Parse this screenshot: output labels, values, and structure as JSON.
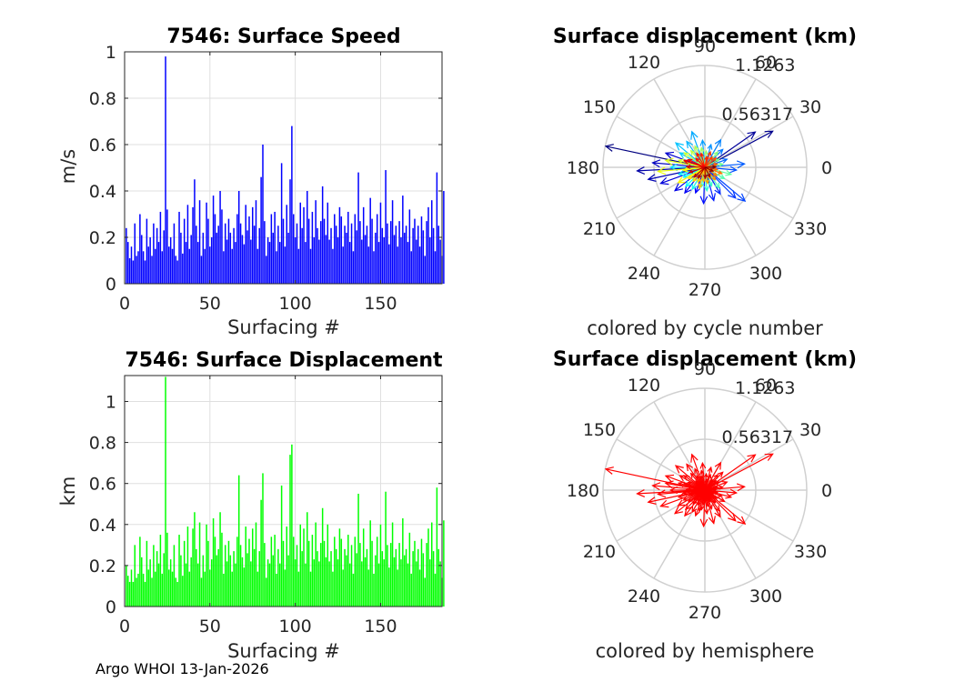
{
  "footer": "Argo WHOI 13-Jan-2026",
  "chart_data": [
    {
      "id": "speed",
      "type": "bar",
      "title": "7546: Surface Speed",
      "xlabel": "Surfacing #",
      "ylabel": "m/s",
      "xlim": [
        0,
        186
      ],
      "ylim": [
        0,
        1
      ],
      "xticks": [
        "0",
        "50",
        "100",
        "150"
      ],
      "yticks": [
        "0",
        "0.2",
        "0.4",
        "0.6",
        "0.8",
        "1"
      ],
      "bar_color": "#0000ff",
      "grid": true,
      "values": [
        0.24,
        0.18,
        0.11,
        0.16,
        0.1,
        0.26,
        0.12,
        0.14,
        0.3,
        0.21,
        0.14,
        0.1,
        0.28,
        0.16,
        0.2,
        0.12,
        0.26,
        0.15,
        0.24,
        0.18,
        0.31,
        0.14,
        0.23,
        0.98,
        0.32,
        0.16,
        0.2,
        0.15,
        0.26,
        0.12,
        0.1,
        0.31,
        0.22,
        0.13,
        0.28,
        0.18,
        0.34,
        0.15,
        0.21,
        0.33,
        0.45,
        0.25,
        0.18,
        0.36,
        0.12,
        0.22,
        0.15,
        0.35,
        0.28,
        0.16,
        0.2,
        0.38,
        0.3,
        0.22,
        0.25,
        0.4,
        0.32,
        0.14,
        0.26,
        0.19,
        0.28,
        0.22,
        0.15,
        0.24,
        0.18,
        0.3,
        0.4,
        0.26,
        0.21,
        0.17,
        0.34,
        0.23,
        0.29,
        0.19,
        0.33,
        0.25,
        0.36,
        0.15,
        0.24,
        0.46,
        0.6,
        0.27,
        0.12,
        0.2,
        0.18,
        0.3,
        0.22,
        0.31,
        0.14,
        0.25,
        0.18,
        0.52,
        0.28,
        0.16,
        0.34,
        0.22,
        0.45,
        0.68,
        0.3,
        0.2,
        0.26,
        0.15,
        0.35,
        0.24,
        0.33,
        0.18,
        0.4,
        0.28,
        0.15,
        0.31,
        0.2,
        0.36,
        0.24,
        0.19,
        0.27,
        0.42,
        0.28,
        0.21,
        0.35,
        0.19,
        0.24,
        0.15,
        0.3,
        0.25,
        0.2,
        0.33,
        0.29,
        0.16,
        0.25,
        0.22,
        0.31,
        0.18,
        0.26,
        0.14,
        0.3,
        0.23,
        0.48,
        0.27,
        0.19,
        0.33,
        0.21,
        0.25,
        0.16,
        0.37,
        0.28,
        0.14,
        0.22,
        0.3,
        0.18,
        0.35,
        0.24,
        0.2,
        0.49,
        0.26,
        0.17,
        0.27,
        0.36,
        0.21,
        0.25,
        0.16,
        0.27,
        0.2,
        0.38,
        0.22,
        0.25,
        0.18,
        0.32,
        0.14,
        0.24,
        0.28,
        0.19,
        0.25,
        0.16,
        0.29,
        0.23,
        0.12,
        0.27,
        0.33,
        0.2,
        0.36,
        0.24,
        0.14,
        0.48,
        0.25,
        0.19,
        0.12,
        0.4
      ]
    },
    {
      "id": "displacement",
      "type": "bar",
      "title": "7546: Surface Displacement",
      "xlabel": "Surfacing #",
      "ylabel": "km",
      "xlim": [
        0,
        186
      ],
      "ylim": [
        0,
        1.1263
      ],
      "xticks": [
        "0",
        "50",
        "100",
        "150"
      ],
      "yticks": [
        "0",
        "0.2",
        "0.4",
        "0.6",
        "0.8",
        "1"
      ],
      "bar_color": "#00ff00",
      "grid": true,
      "values": [
        0.2,
        0.15,
        0.12,
        0.18,
        0.12,
        0.3,
        0.14,
        0.16,
        0.34,
        0.24,
        0.16,
        0.12,
        0.32,
        0.18,
        0.23,
        0.14,
        0.3,
        0.17,
        0.27,
        0.21,
        0.35,
        0.16,
        0.26,
        1.12,
        0.36,
        0.18,
        0.23,
        0.17,
        0.3,
        0.14,
        0.12,
        0.35,
        0.25,
        0.15,
        0.32,
        0.21,
        0.39,
        0.17,
        0.24,
        0.38,
        0.46,
        0.28,
        0.21,
        0.41,
        0.14,
        0.25,
        0.17,
        0.4,
        0.32,
        0.18,
        0.23,
        0.43,
        0.34,
        0.25,
        0.28,
        0.46,
        0.36,
        0.16,
        0.3,
        0.22,
        0.32,
        0.25,
        0.17,
        0.27,
        0.21,
        0.34,
        0.64,
        0.3,
        0.24,
        0.19,
        0.39,
        0.26,
        0.33,
        0.22,
        0.38,
        0.28,
        0.41,
        0.17,
        0.27,
        0.52,
        0.65,
        0.31,
        0.14,
        0.23,
        0.21,
        0.34,
        0.25,
        0.35,
        0.16,
        0.28,
        0.21,
        0.59,
        0.32,
        0.18,
        0.39,
        0.25,
        0.74,
        0.79,
        0.34,
        0.23,
        0.3,
        0.17,
        0.4,
        0.27,
        0.38,
        0.21,
        0.46,
        0.32,
        0.17,
        0.35,
        0.23,
        0.41,
        0.27,
        0.22,
        0.31,
        0.48,
        0.32,
        0.24,
        0.4,
        0.22,
        0.27,
        0.17,
        0.34,
        0.28,
        0.23,
        0.38,
        0.33,
        0.18,
        0.28,
        0.25,
        0.35,
        0.21,
        0.3,
        0.16,
        0.34,
        0.26,
        0.55,
        0.31,
        0.22,
        0.38,
        0.24,
        0.28,
        0.18,
        0.42,
        0.32,
        0.16,
        0.25,
        0.34,
        0.21,
        0.4,
        0.27,
        0.23,
        0.56,
        0.3,
        0.19,
        0.31,
        0.41,
        0.24,
        0.28,
        0.18,
        0.31,
        0.23,
        0.43,
        0.25,
        0.28,
        0.21,
        0.36,
        0.16,
        0.27,
        0.32,
        0.22,
        0.28,
        0.18,
        0.33,
        0.26,
        0.14,
        0.31,
        0.38,
        0.23,
        0.41,
        0.27,
        0.16,
        0.58,
        0.28,
        0.22,
        0.14,
        0.42
      ]
    },
    {
      "id": "polar-cycle",
      "type": "polar-vectors",
      "title": "Surface displacement (km)",
      "caption": "colored by cycle number",
      "rmax": 1.1263,
      "ring_labels": [
        "0.56317",
        "1.1263"
      ],
      "angle_labels": [
        "0",
        "30",
        "60",
        "90",
        "120",
        "150",
        "180",
        "210",
        "240",
        "270",
        "300",
        "330"
      ],
      "coloring": "cycle",
      "vectors": [
        {
          "angle": 168,
          "r": 1.12
        },
        {
          "angle": 28,
          "r": 0.85
        },
        {
          "angle": 35,
          "r": 0.68
        },
        {
          "angle": 183,
          "r": 0.75
        },
        {
          "angle": 192,
          "r": 0.64
        },
        {
          "angle": 175,
          "r": 0.58
        },
        {
          "angle": 160,
          "r": 0.46
        },
        {
          "angle": 200,
          "r": 0.52
        },
        {
          "angle": 218,
          "r": 0.42
        },
        {
          "angle": 232,
          "r": 0.36
        },
        {
          "angle": 250,
          "r": 0.3
        },
        {
          "angle": 268,
          "r": 0.4
        },
        {
          "angle": 285,
          "r": 0.38
        },
        {
          "angle": 300,
          "r": 0.34
        },
        {
          "angle": 315,
          "r": 0.48
        },
        {
          "angle": 320,
          "r": 0.58
        },
        {
          "angle": 355,
          "r": 0.35
        },
        {
          "angle": 5,
          "r": 0.44
        },
        {
          "angle": 20,
          "r": 0.26
        },
        {
          "angle": 45,
          "r": 0.28
        },
        {
          "angle": 60,
          "r": 0.35
        },
        {
          "angle": 75,
          "r": 0.26
        },
        {
          "angle": 95,
          "r": 0.3
        },
        {
          "angle": 110,
          "r": 0.42
        },
        {
          "angle": 125,
          "r": 0.35
        },
        {
          "angle": 140,
          "r": 0.42
        },
        {
          "angle": 150,
          "r": 0.32
        },
        {
          "angle": 180,
          "r": 0.38
        },
        {
          "angle": 195,
          "r": 0.3
        },
        {
          "angle": 205,
          "r": 0.26
        },
        {
          "angle": 225,
          "r": 0.3
        },
        {
          "angle": 240,
          "r": 0.28
        },
        {
          "angle": 260,
          "r": 0.22
        },
        {
          "angle": 275,
          "r": 0.26
        },
        {
          "angle": 290,
          "r": 0.22
        },
        {
          "angle": 305,
          "r": 0.28
        },
        {
          "angle": 330,
          "r": 0.25
        },
        {
          "angle": 345,
          "r": 0.3
        },
        {
          "angle": 10,
          "r": 0.2
        },
        {
          "angle": 30,
          "r": 0.18
        },
        {
          "angle": 50,
          "r": 0.22
        },
        {
          "angle": 85,
          "r": 0.18
        },
        {
          "angle": 100,
          "r": 0.22
        },
        {
          "angle": 115,
          "r": 0.26
        },
        {
          "angle": 130,
          "r": 0.24
        },
        {
          "angle": 145,
          "r": 0.28
        },
        {
          "angle": 165,
          "r": 0.3
        },
        {
          "angle": 170,
          "r": 0.44
        },
        {
          "angle": 185,
          "r": 0.52
        },
        {
          "angle": 188,
          "r": 0.24
        },
        {
          "angle": 210,
          "r": 0.34
        },
        {
          "angle": 215,
          "r": 0.22
        },
        {
          "angle": 230,
          "r": 0.2
        },
        {
          "angle": 245,
          "r": 0.18
        },
        {
          "angle": 255,
          "r": 0.24
        },
        {
          "angle": 265,
          "r": 0.16
        },
        {
          "angle": 280,
          "r": 0.18
        },
        {
          "angle": 295,
          "r": 0.14
        },
        {
          "angle": 310,
          "r": 0.18
        },
        {
          "angle": 325,
          "r": 0.16
        },
        {
          "angle": 340,
          "r": 0.2
        },
        {
          "angle": 350,
          "r": 0.14
        },
        {
          "angle": 15,
          "r": 0.14
        },
        {
          "angle": 40,
          "r": 0.16
        },
        {
          "angle": 55,
          "r": 0.14
        },
        {
          "angle": 70,
          "r": 0.18
        },
        {
          "angle": 80,
          "r": 0.12
        },
        {
          "angle": 105,
          "r": 0.16
        },
        {
          "angle": 120,
          "r": 0.18
        },
        {
          "angle": 135,
          "r": 0.14
        },
        {
          "angle": 155,
          "r": 0.2
        },
        {
          "angle": 162,
          "r": 0.24
        },
        {
          "angle": 178,
          "r": 0.2
        },
        {
          "angle": 198,
          "r": 0.18
        },
        {
          "angle": 222,
          "r": 0.16
        },
        {
          "angle": 238,
          "r": 0.14
        },
        {
          "angle": 272,
          "r": 0.12
        },
        {
          "angle": 298,
          "r": 0.12
        },
        {
          "angle": 335,
          "r": 0.1
        },
        {
          "angle": 2,
          "r": 0.12
        }
      ]
    },
    {
      "id": "polar-hemisphere",
      "type": "polar-vectors",
      "title": "Surface displacement (km)",
      "caption": "colored by hemisphere",
      "rmax": 1.1263,
      "ring_labels": [
        "0.56317",
        "1.1263"
      ],
      "angle_labels": [
        "0",
        "30",
        "60",
        "90",
        "120",
        "150",
        "180",
        "210",
        "240",
        "270",
        "300",
        "330"
      ],
      "coloring": "hemisphere",
      "vector_color": "#ff0000",
      "vectors": [
        {
          "angle": 168,
          "r": 1.12
        },
        {
          "angle": 28,
          "r": 0.85
        },
        {
          "angle": 35,
          "r": 0.68
        },
        {
          "angle": 183,
          "r": 0.75
        },
        {
          "angle": 192,
          "r": 0.64
        },
        {
          "angle": 175,
          "r": 0.58
        },
        {
          "angle": 160,
          "r": 0.46
        },
        {
          "angle": 200,
          "r": 0.52
        },
        {
          "angle": 218,
          "r": 0.42
        },
        {
          "angle": 232,
          "r": 0.36
        },
        {
          "angle": 250,
          "r": 0.3
        },
        {
          "angle": 268,
          "r": 0.4
        },
        {
          "angle": 285,
          "r": 0.38
        },
        {
          "angle": 300,
          "r": 0.34
        },
        {
          "angle": 315,
          "r": 0.48
        },
        {
          "angle": 320,
          "r": 0.58
        },
        {
          "angle": 355,
          "r": 0.35
        },
        {
          "angle": 5,
          "r": 0.44
        },
        {
          "angle": 20,
          "r": 0.26
        },
        {
          "angle": 45,
          "r": 0.28
        },
        {
          "angle": 60,
          "r": 0.35
        },
        {
          "angle": 75,
          "r": 0.26
        },
        {
          "angle": 95,
          "r": 0.3
        },
        {
          "angle": 110,
          "r": 0.42
        },
        {
          "angle": 125,
          "r": 0.35
        },
        {
          "angle": 140,
          "r": 0.42
        },
        {
          "angle": 150,
          "r": 0.32
        },
        {
          "angle": 180,
          "r": 0.38
        },
        {
          "angle": 195,
          "r": 0.3
        },
        {
          "angle": 205,
          "r": 0.26
        },
        {
          "angle": 225,
          "r": 0.3
        },
        {
          "angle": 240,
          "r": 0.28
        },
        {
          "angle": 260,
          "r": 0.22
        },
        {
          "angle": 275,
          "r": 0.26
        },
        {
          "angle": 290,
          "r": 0.22
        },
        {
          "angle": 305,
          "r": 0.28
        },
        {
          "angle": 330,
          "r": 0.25
        },
        {
          "angle": 345,
          "r": 0.3
        },
        {
          "angle": 10,
          "r": 0.2
        },
        {
          "angle": 30,
          "r": 0.18
        },
        {
          "angle": 50,
          "r": 0.22
        },
        {
          "angle": 85,
          "r": 0.18
        },
        {
          "angle": 100,
          "r": 0.22
        },
        {
          "angle": 115,
          "r": 0.26
        },
        {
          "angle": 130,
          "r": 0.24
        },
        {
          "angle": 145,
          "r": 0.28
        },
        {
          "angle": 165,
          "r": 0.3
        },
        {
          "angle": 170,
          "r": 0.44
        },
        {
          "angle": 185,
          "r": 0.52
        },
        {
          "angle": 188,
          "r": 0.24
        },
        {
          "angle": 210,
          "r": 0.34
        },
        {
          "angle": 215,
          "r": 0.22
        },
        {
          "angle": 230,
          "r": 0.2
        },
        {
          "angle": 245,
          "r": 0.18
        },
        {
          "angle": 255,
          "r": 0.24
        },
        {
          "angle": 265,
          "r": 0.16
        },
        {
          "angle": 280,
          "r": 0.18
        },
        {
          "angle": 295,
          "r": 0.14
        },
        {
          "angle": 310,
          "r": 0.18
        },
        {
          "angle": 325,
          "r": 0.16
        },
        {
          "angle": 340,
          "r": 0.2
        },
        {
          "angle": 350,
          "r": 0.14
        },
        {
          "angle": 15,
          "r": 0.14
        },
        {
          "angle": 40,
          "r": 0.16
        },
        {
          "angle": 55,
          "r": 0.14
        },
        {
          "angle": 70,
          "r": 0.18
        },
        {
          "angle": 80,
          "r": 0.12
        },
        {
          "angle": 105,
          "r": 0.16
        },
        {
          "angle": 120,
          "r": 0.18
        },
        {
          "angle": 135,
          "r": 0.14
        },
        {
          "angle": 155,
          "r": 0.2
        },
        {
          "angle": 162,
          "r": 0.24
        },
        {
          "angle": 178,
          "r": 0.2
        },
        {
          "angle": 198,
          "r": 0.18
        },
        {
          "angle": 222,
          "r": 0.16
        },
        {
          "angle": 238,
          "r": 0.14
        },
        {
          "angle": 272,
          "r": 0.12
        },
        {
          "angle": 298,
          "r": 0.12
        },
        {
          "angle": 335,
          "r": 0.1
        },
        {
          "angle": 2,
          "r": 0.12
        }
      ]
    }
  ]
}
